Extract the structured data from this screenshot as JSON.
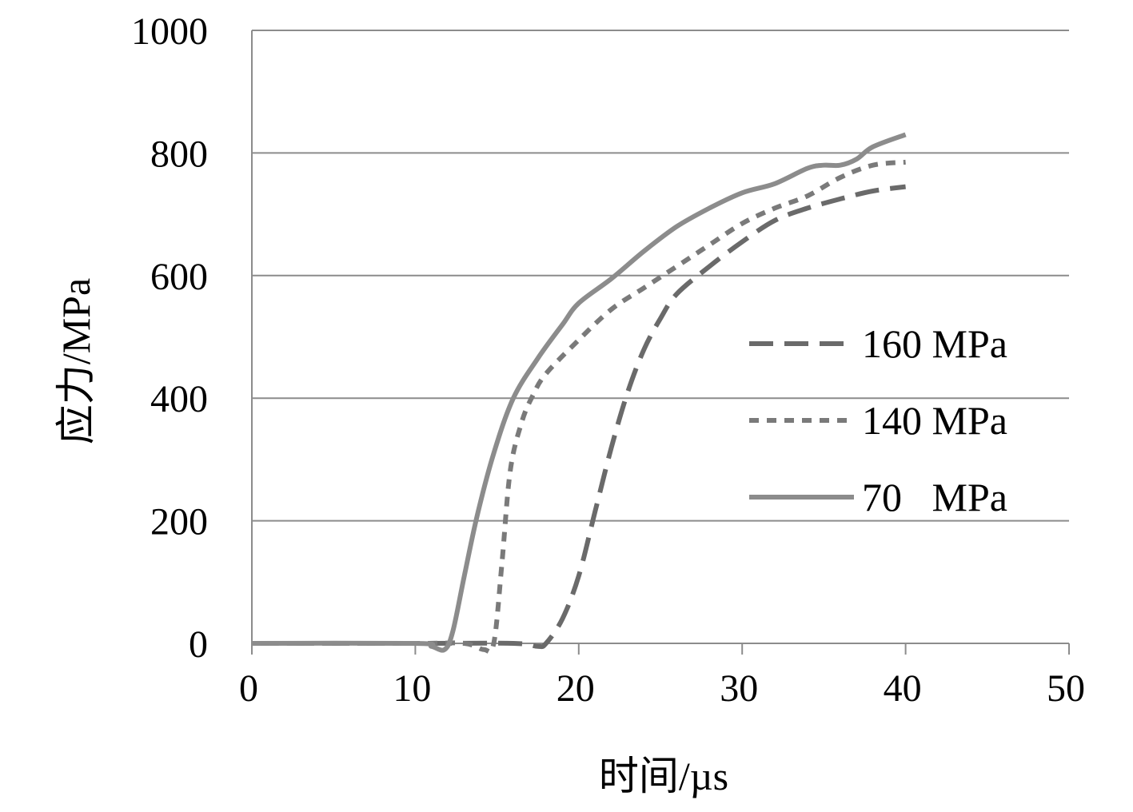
{
  "chart_data": {
    "type": "line",
    "title": "",
    "xlabel": "时间/µs",
    "ylabel": "应力/MPa",
    "xlim": [
      0,
      50
    ],
    "ylim": [
      0,
      1000
    ],
    "xticks": [
      0,
      10,
      20,
      30,
      40,
      50
    ],
    "yticks": [
      0,
      200,
      400,
      600,
      800,
      1000
    ],
    "grid": "horizontal",
    "legend_position": "right",
    "series": [
      {
        "name": "160 MPa",
        "label": "160 MPa",
        "style": "dashed",
        "color": "#6a6a6a",
        "x": [
          0,
          10,
          16,
          17.5,
          18,
          19,
          20,
          21,
          22,
          23,
          24,
          25,
          26,
          28,
          30,
          32,
          34,
          36,
          38,
          40
        ],
        "y": [
          0,
          0,
          0,
          -5,
          0,
          40,
          110,
          215,
          320,
          410,
          480,
          530,
          570,
          615,
          655,
          690,
          710,
          725,
          738,
          745
        ]
      },
      {
        "name": "140 MPa",
        "label": "140 MPa",
        "style": "dotted",
        "color": "#7a7a7a",
        "x": [
          0,
          10,
          13,
          14.2,
          14.8,
          15.3,
          15.8,
          16.5,
          17.2,
          18,
          20,
          22,
          24,
          26,
          28,
          30,
          32,
          34,
          36,
          38,
          40
        ],
        "y": [
          0,
          0,
          0,
          -10,
          0,
          130,
          280,
          360,
          405,
          440,
          495,
          545,
          580,
          615,
          650,
          685,
          710,
          730,
          760,
          780,
          785
        ]
      },
      {
        "name": "70 MPa",
        "label": "70   MPa",
        "style": "solid",
        "color": "#8c8c8c",
        "x": [
          0,
          10,
          11,
          11.8,
          12.3,
          13,
          13.8,
          14.8,
          16,
          17.5,
          19,
          20,
          22,
          24,
          26,
          28,
          30,
          32,
          34,
          35,
          36,
          37,
          38,
          40
        ],
        "y": [
          0,
          0,
          -5,
          -10,
          20,
          110,
          210,
          310,
          400,
          465,
          520,
          555,
          595,
          640,
          680,
          710,
          735,
          750,
          775,
          780,
          780,
          790,
          810,
          830
        ]
      }
    ]
  }
}
